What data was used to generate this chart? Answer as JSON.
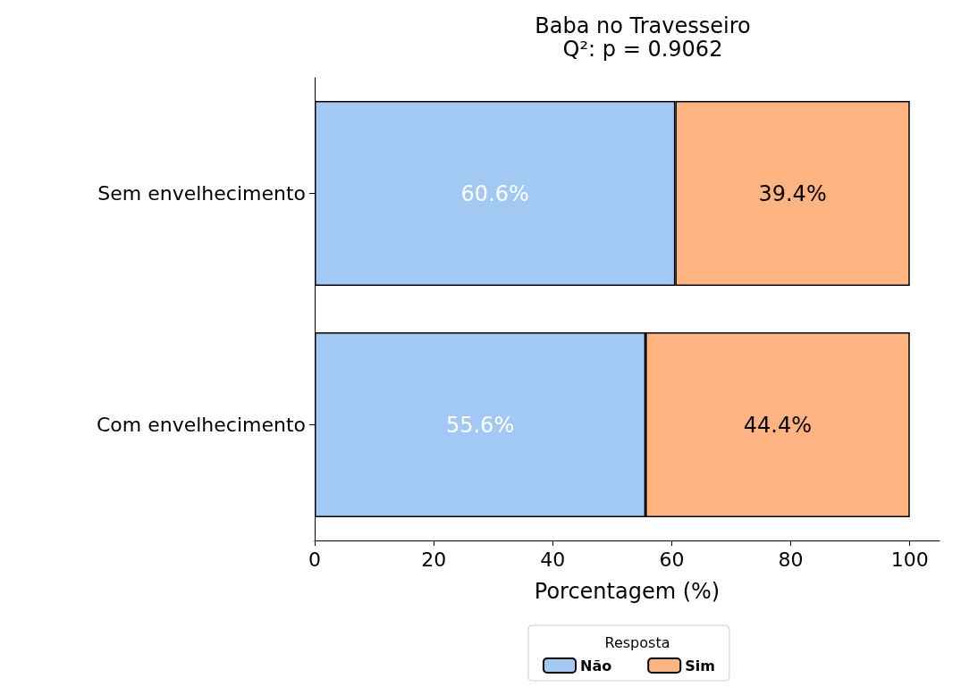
{
  "chart_data": {
    "type": "bar",
    "orientation": "horizontal",
    "stacked": true,
    "title": "Baba no Travesseiro",
    "subtitle": "Q²: p = 0.9062",
    "xlabel": "Porcentagem (%)",
    "legend_title": "Resposta",
    "categories": [
      "Sem envelhecimento",
      "Com envelhecimento"
    ],
    "series": [
      {
        "name": "Não",
        "color": "#a1c9f4",
        "values": [
          60.6,
          55.6
        ],
        "value_labels": [
          "60.6%",
          "55.6%"
        ]
      },
      {
        "name": "Sim",
        "color": "#ffb482",
        "values": [
          39.4,
          44.4
        ],
        "value_labels": [
          "39.4%",
          "44.4%"
        ]
      }
    ],
    "xlim": [
      0,
      105
    ],
    "xticks": [
      0,
      20,
      40,
      60,
      80,
      100
    ],
    "grid": false,
    "legend": "bottom"
  }
}
